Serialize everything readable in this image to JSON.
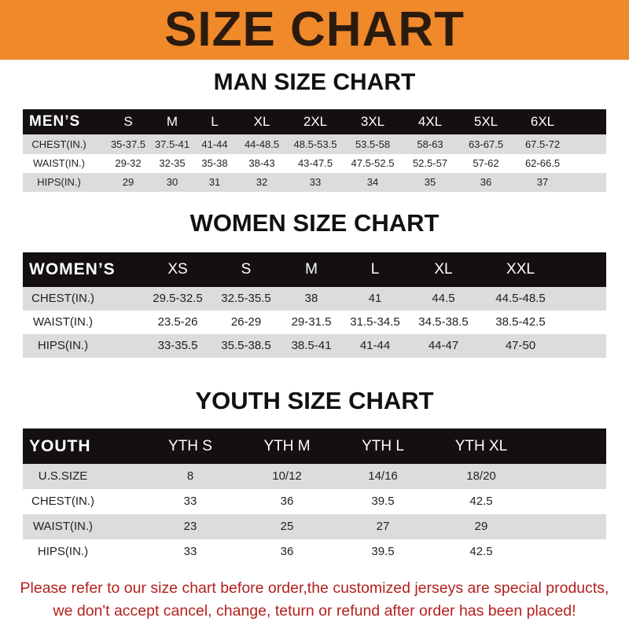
{
  "banner_title": "SIZE CHART",
  "men": {
    "title": "MAN SIZE CHART",
    "header": [
      "MEN’S",
      "S",
      "M",
      "L",
      "XL",
      "2XL",
      "3XL",
      "4XL",
      "5XL",
      "6XL"
    ],
    "rows": [
      [
        "CHEST(IN.)",
        "35-37.5",
        "37.5-41",
        "41-44",
        "44-48.5",
        "48.5-53.5",
        "53.5-58",
        "58-63",
        "63-67.5",
        "67.5-72"
      ],
      [
        "WAIST(IN.)",
        "29-32",
        "32-35",
        "35-38",
        "38-43",
        "43-47.5",
        "47.5-52.5",
        "52.5-57",
        "57-62",
        "62-66.5"
      ],
      [
        "HIPS(IN.)",
        "29",
        "30",
        "31",
        "32",
        "33",
        "34",
        "35",
        "36",
        "37"
      ]
    ]
  },
  "women": {
    "title": "WOMEN SIZE CHART",
    "header": [
      "WOMEN’S",
      "XS",
      "S",
      "M",
      "L",
      "XL",
      "XXL"
    ],
    "rows": [
      [
        "CHEST(IN.)",
        "29.5-32.5",
        "32.5-35.5",
        "38",
        "41",
        "44.5",
        "44.5-48.5"
      ],
      [
        "WAIST(IN.)",
        "23.5-26",
        "26-29",
        "29-31.5",
        "31.5-34.5",
        "34.5-38.5",
        "38.5-42.5"
      ],
      [
        "HIPS(IN.)",
        "33-35.5",
        "35.5-38.5",
        "38.5-41",
        "41-44",
        "44-47",
        "47-50"
      ]
    ]
  },
  "youth": {
    "title": "YOUTH SIZE CHART",
    "header": [
      "YOUTH",
      "YTH S",
      "YTH M",
      "YTH L",
      "YTH XL"
    ],
    "rows": [
      [
        "U.S.SIZE",
        "8",
        "10/12",
        "14/16",
        "18/20"
      ],
      [
        "CHEST(IN.)",
        "33",
        "36",
        "39.5",
        "42.5"
      ],
      [
        "WAIST(IN.)",
        "23",
        "25",
        "27",
        "29"
      ],
      [
        "HIPS(IN.)",
        "33",
        "36",
        "39.5",
        "42.5"
      ]
    ]
  },
  "footer": {
    "line1": "Please refer to our size chart before order,the customized jerseys are special products,",
    "line2": "we don't accept cancel, change, teturn or refund after order has been placed!"
  },
  "colors": {
    "banner": "#f0892a",
    "header_row": "#141010",
    "stripe": "#dcdcdc",
    "notice": "#b3211e"
  }
}
